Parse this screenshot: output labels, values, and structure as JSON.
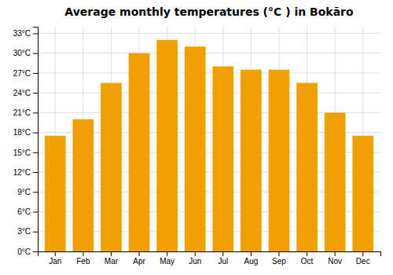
{
  "chart_data": {
    "type": "bar",
    "title": "Average monthly temperatures (°C ) in Bokāro",
    "categories": [
      "Jan",
      "Feb",
      "Mar",
      "Apr",
      "May",
      "Jun",
      "Jul",
      "Aug",
      "Sep",
      "Oct",
      "Nov",
      "Dec"
    ],
    "values": [
      17.5,
      20.0,
      25.5,
      30.0,
      32.0,
      31.0,
      28.0,
      27.5,
      27.5,
      25.5,
      21.0,
      17.5
    ],
    "color": "#F0A000",
    "ylim": [
      0,
      34
    ],
    "yticks": [
      {
        "value": 0,
        "label": "0°C"
      },
      {
        "value": 3,
        "label": "3°C"
      },
      {
        "value": 6,
        "label": "6°C"
      },
      {
        "value": 9,
        "label": "9°C"
      },
      {
        "value": 12,
        "label": "12°C"
      },
      {
        "value": 15,
        "label": "15°C"
      },
      {
        "value": 18,
        "label": "18°C"
      },
      {
        "value": 21,
        "label": "21°C"
      },
      {
        "value": 24,
        "label": "24°C"
      },
      {
        "value": 27,
        "label": "27°C"
      },
      {
        "value": 30,
        "label": "30°C"
      },
      {
        "value": 33,
        "label": "33°C"
      }
    ],
    "grid": true
  }
}
